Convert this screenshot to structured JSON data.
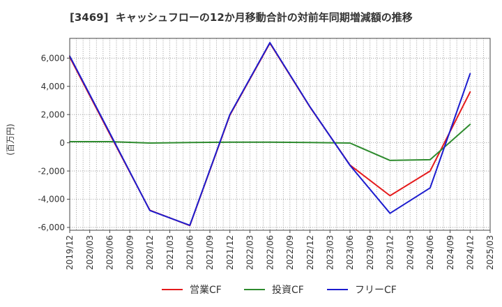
{
  "chart_data": {
    "type": "line",
    "title": "[3469]  キャッシュフローの12か月移動合計の対前年同期増減額の推移",
    "xlabel": "",
    "ylabel": "(百万円)",
    "x_ticks": [
      "2019/12",
      "2020/03",
      "2020/06",
      "2020/09",
      "2020/12",
      "2021/03",
      "2021/06",
      "2021/09",
      "2021/12",
      "2022/03",
      "2022/06",
      "2022/09",
      "2022/12",
      "2023/03",
      "2023/06",
      "2023/09",
      "2023/12",
      "2024/03",
      "2024/06",
      "2024/09",
      "2024/12",
      "2025/03"
    ],
    "y_ticks": [
      6000,
      4000,
      2000,
      0,
      -2000,
      -4000,
      -6000
    ],
    "y_tick_labels": [
      "6,000",
      "4,000",
      "2,000",
      "0",
      "-2,000",
      "-4,000",
      "-6,000"
    ],
    "ylim": [
      -6200,
      7400
    ],
    "grid": true,
    "legend_position": "bottom",
    "series": [
      {
        "name": "営業CF",
        "color": "#e41a1c",
        "x": [
          "2019/12",
          "2020/06",
          "2020/12",
          "2021/06",
          "2021/12",
          "2022/06",
          "2022/12",
          "2023/06",
          "2023/12",
          "2024/06",
          "2024/12"
        ],
        "values": [
          6070,
          620,
          -4780,
          -5870,
          1960,
          7060,
          2530,
          -1580,
          -3750,
          -2000,
          3600
        ]
      },
      {
        "name": "投資CF",
        "color": "#2e8b2e",
        "x": [
          "2019/12",
          "2020/06",
          "2020/12",
          "2021/06",
          "2021/12",
          "2022/06",
          "2022/12",
          "2023/06",
          "2023/12",
          "2024/06",
          "2024/12"
        ],
        "values": [
          80,
          80,
          -20,
          20,
          40,
          40,
          20,
          -20,
          -1250,
          -1200,
          1300
        ]
      },
      {
        "name": "フリーCF",
        "color": "#1c1ccf",
        "x": [
          "2019/12",
          "2020/06",
          "2020/12",
          "2021/06",
          "2021/12",
          "2022/06",
          "2022/12",
          "2023/06",
          "2023/12",
          "2024/06",
          "2024/12"
        ],
        "values": [
          6150,
          700,
          -4800,
          -5850,
          2000,
          7100,
          2550,
          -1600,
          -5000,
          -3200,
          4900
        ]
      }
    ]
  }
}
